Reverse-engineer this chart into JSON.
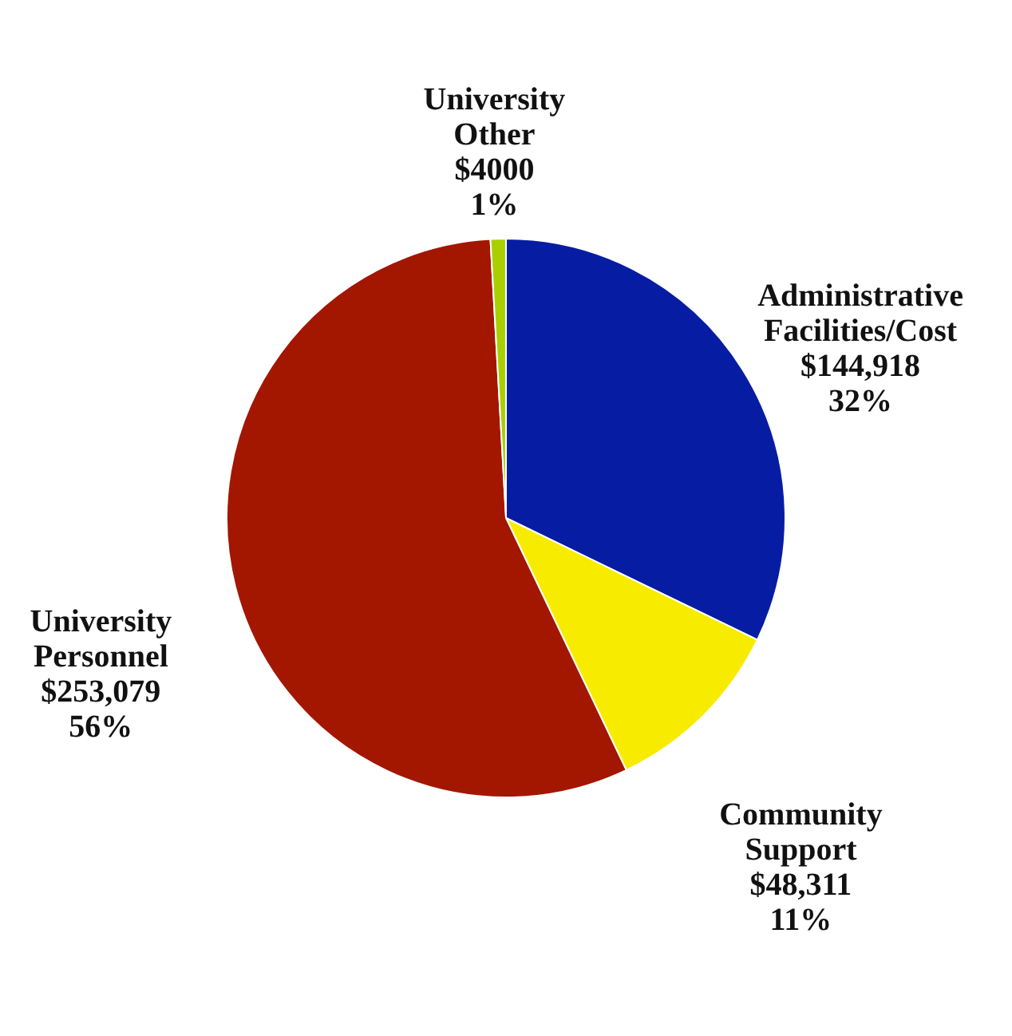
{
  "chart_data": {
    "type": "pie",
    "categories": [
      "Administrative Facilities/Cost",
      "Community Support",
      "University Personnel",
      "University Other"
    ],
    "values": [
      144918,
      48311,
      253079,
      4000
    ],
    "value_labels": [
      "$144,918\n32%",
      "$48,311\n11%",
      "$253,079\n56%",
      "$4000\n1%"
    ],
    "colors": [
      "#061da3",
      "#f7ec00",
      "#a31600",
      "#a9cf00"
    ],
    "legend": false
  }
}
